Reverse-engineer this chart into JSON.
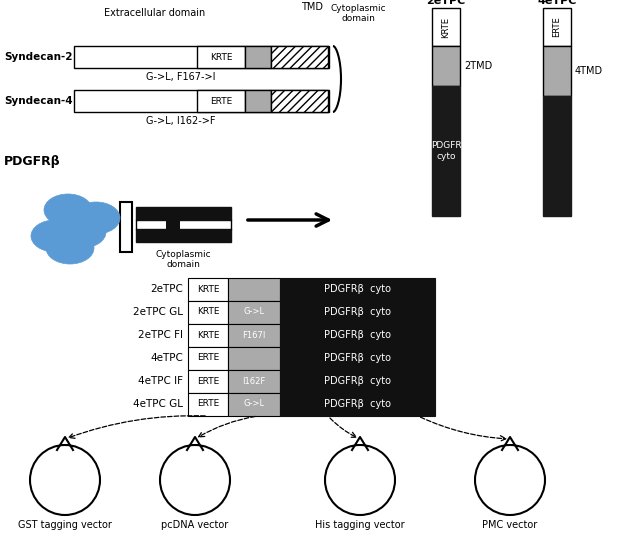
{
  "bg_color": "#ffffff",
  "syndecan2_label": "Syndecan-2",
  "syndecan4_label": "Syndecan-4",
  "pdgfrb_label": "PDGFRβ",
  "extracell_label": "Extracellular domain",
  "tmd_label": "TMD",
  "cytoplasmic_label": "Cytoplasmic\ndomain",
  "sdc2_mutation": "G->L, F167->I",
  "sdc4_mutation": "G->L, I162->F",
  "bar_title_2": "2eTPC",
  "bar_title_4": "4eTPC",
  "chimera_rows": [
    {
      "label": "2eTPC",
      "tag": "KRTE",
      "mut": "",
      "pdgfr": "PDGFRβ  cyto"
    },
    {
      "label": "2eTPC GL",
      "tag": "KRTE",
      "mut": "G->L",
      "pdgfr": "PDGFRβ  cyto"
    },
    {
      "label": "2eTPC FI",
      "tag": "KRTE",
      "mut": "F167I",
      "pdgfr": "PDGFRβ  cyto"
    },
    {
      "label": "4eTPC",
      "tag": "ERTE",
      "mut": "",
      "pdgfr": "PDGFRβ  cyto"
    },
    {
      "label": "4eTPC IF",
      "tag": "ERTE",
      "mut": "I162F",
      "pdgfr": "PDGFRβ  cyto"
    },
    {
      "label": "4eTPC GL",
      "tag": "ERTE",
      "mut": "G->L",
      "pdgfr": "PDGFRβ  cyto"
    }
  ],
  "vector_labels": [
    "GST tagging vector",
    "pcDNA vector",
    "His tagging vector",
    "PMC vector"
  ],
  "color_gray": "#aaaaaa",
  "color_dark_gray": "#888888",
  "color_black": "#111111",
  "color_white": "#ffffff",
  "color_blue": "#5b9bd5"
}
